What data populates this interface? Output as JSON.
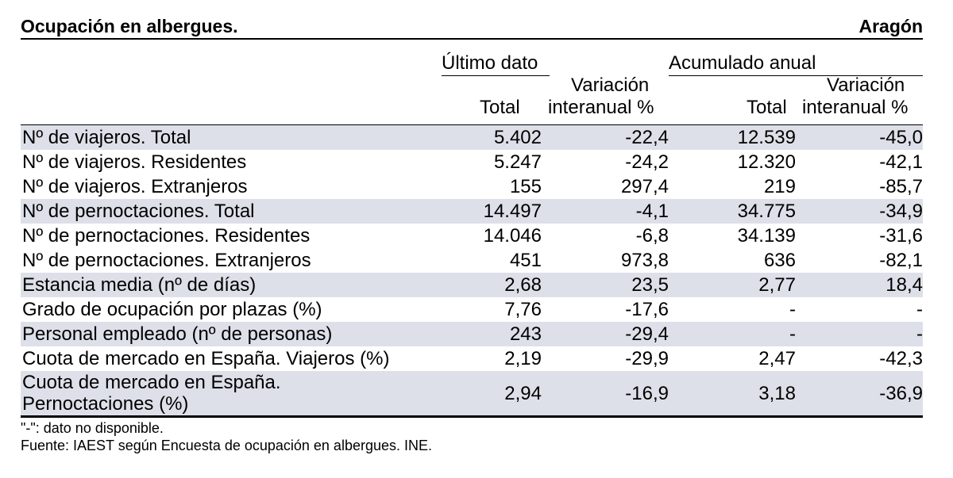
{
  "title": "Ocupación en albergues.",
  "region": "Aragón",
  "header": {
    "group_ultimo": "Último dato",
    "group_acumulado": "Acumulado anual",
    "col_total_1": "Total",
    "col_var_1_line1": "Variación",
    "col_var_1_line2": "interanual %",
    "col_total_2": "Total",
    "col_var_2_line1": "Variación",
    "col_var_2_line2": "interanual %"
  },
  "rows": [
    {
      "label": "Nº de viajeros. Total",
      "total": "5.402",
      "var": "-22,4",
      "acum_total": "12.539",
      "acum_var": "-45,0"
    },
    {
      "label": "Nº de viajeros. Residentes",
      "total": "5.247",
      "var": "-24,2",
      "acum_total": "12.320",
      "acum_var": "-42,1"
    },
    {
      "label": "Nº de viajeros. Extranjeros",
      "total": "155",
      "var": "297,4",
      "acum_total": "219",
      "acum_var": "-85,7"
    },
    {
      "label": "Nº de pernoctaciones. Total",
      "total": "14.497",
      "var": "-4,1",
      "acum_total": "34.775",
      "acum_var": "-34,9"
    },
    {
      "label": "Nº de pernoctaciones. Residentes",
      "total": "14.046",
      "var": "-6,8",
      "acum_total": "34.139",
      "acum_var": "-31,6"
    },
    {
      "label": "Nº de pernoctaciones. Extranjeros",
      "total": "451",
      "var": "973,8",
      "acum_total": "636",
      "acum_var": "-82,1"
    },
    {
      "label": "Estancia media (nº de días)",
      "total": "2,68",
      "var": "23,5",
      "acum_total": "2,77",
      "acum_var": "18,4"
    },
    {
      "label": "Grado de ocupación por plazas (%)",
      "total": "7,76",
      "var": "-17,6",
      "acum_total": "-",
      "acum_var": "-"
    },
    {
      "label": "Personal empleado (nº de personas)",
      "total": "243",
      "var": "-29,4",
      "acum_total": "-",
      "acum_var": "-"
    },
    {
      "label": "Cuota de mercado en España. Viajeros (%)",
      "total": "2,19",
      "var": "-29,9",
      "acum_total": "2,47",
      "acum_var": "-42,3"
    },
    {
      "label": "Cuota de mercado en España. Pernoctaciones (%)",
      "total": "2,94",
      "var": "-16,9",
      "acum_total": "3,18",
      "acum_var": "-36,9"
    }
  ],
  "notes": {
    "missing": "\"-\": dato no disponible.",
    "source": "Fuente: IAEST según Encuesta de ocupación en albergues. INE."
  },
  "colors": {
    "shade": "#dde0e8"
  }
}
